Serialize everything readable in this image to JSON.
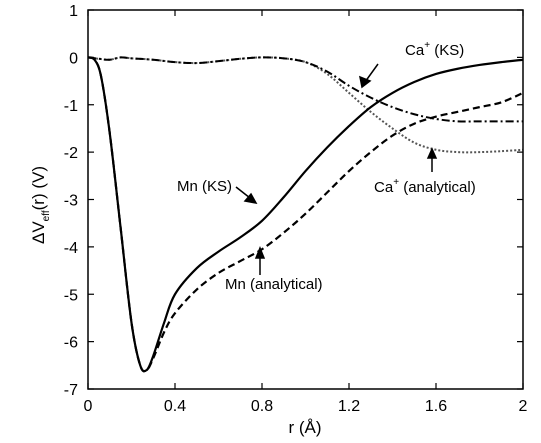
{
  "chart_data": {
    "type": "line",
    "xlabel": "r",
    "xlabel_unit": "(Å)",
    "ylabel_prefix": "ΔV",
    "ylabel_sub": "eff",
    "ylabel_suffix": "(r)",
    "ylabel_unit": "(V)",
    "xlim": [
      0,
      2
    ],
    "ylim": [
      -7,
      1
    ],
    "xticks": [
      0,
      0.4,
      0.8,
      1.2,
      1.6,
      2
    ],
    "xtick_labels": [
      "0",
      "0.4",
      "0.8",
      "1.2",
      "1.6",
      "2"
    ],
    "yticks": [
      1,
      0,
      -1,
      -2,
      -3,
      -4,
      -5,
      -6,
      -7
    ],
    "ytick_labels": [
      "1",
      "0",
      "-1",
      "-2",
      "-3",
      "-4",
      "-5",
      "-6",
      "-7"
    ],
    "grid": false,
    "series": [
      {
        "name": "Mn (KS)",
        "style": "solid",
        "x": [
          0,
          0.03,
          0.06,
          0.1,
          0.15,
          0.2,
          0.24,
          0.27,
          0.3,
          0.35,
          0.4,
          0.5,
          0.6,
          0.7,
          0.8,
          0.9,
          1.0,
          1.1,
          1.2,
          1.3,
          1.4,
          1.5,
          1.6,
          1.7,
          1.8,
          1.9,
          2.0
        ],
        "y": [
          0,
          -0.05,
          -0.4,
          -1.6,
          -3.6,
          -5.6,
          -6.5,
          -6.6,
          -6.3,
          -5.6,
          -5.0,
          -4.45,
          -4.1,
          -3.8,
          -3.45,
          -2.95,
          -2.4,
          -1.9,
          -1.45,
          -1.05,
          -0.75,
          -0.52,
          -0.35,
          -0.24,
          -0.16,
          -0.1,
          -0.05
        ]
      },
      {
        "name": "Mn (analytical)",
        "style": "dashed",
        "x": [
          0,
          0.03,
          0.06,
          0.1,
          0.15,
          0.2,
          0.24,
          0.27,
          0.3,
          0.35,
          0.4,
          0.5,
          0.6,
          0.7,
          0.8,
          0.9,
          1.0,
          1.1,
          1.2,
          1.3,
          1.4,
          1.5,
          1.6,
          1.7,
          1.8,
          1.9,
          2.0
        ],
        "y": [
          0,
          -0.05,
          -0.4,
          -1.6,
          -3.6,
          -5.6,
          -6.5,
          -6.6,
          -6.35,
          -5.8,
          -5.4,
          -4.9,
          -4.55,
          -4.3,
          -4.05,
          -3.7,
          -3.3,
          -2.85,
          -2.4,
          -2.0,
          -1.65,
          -1.4,
          -1.25,
          -1.15,
          -1.05,
          -0.95,
          -0.75
        ]
      },
      {
        "name": "Ca+ (KS)",
        "style": "dashdot",
        "x": [
          0,
          0.05,
          0.1,
          0.15,
          0.2,
          0.3,
          0.4,
          0.5,
          0.6,
          0.7,
          0.8,
          0.9,
          1.0,
          1.1,
          1.2,
          1.3,
          1.4,
          1.5,
          1.6,
          1.7,
          1.8,
          1.9,
          2.0
        ],
        "y": [
          0,
          -0.03,
          -0.05,
          0.0,
          -0.02,
          -0.05,
          -0.1,
          -0.12,
          -0.08,
          -0.03,
          0.0,
          -0.02,
          -0.1,
          -0.3,
          -0.6,
          -0.85,
          -1.05,
          -1.2,
          -1.3,
          -1.35,
          -1.35,
          -1.35,
          -1.35
        ]
      },
      {
        "name": "Ca+ (analytical)",
        "style": "dotted",
        "x": [
          0,
          0.05,
          0.1,
          0.15,
          0.2,
          0.3,
          0.4,
          0.5,
          0.6,
          0.7,
          0.8,
          0.9,
          1.0,
          1.1,
          1.2,
          1.3,
          1.4,
          1.5,
          1.6,
          1.7,
          1.8,
          1.9,
          2.0
        ],
        "y": [
          0,
          -0.03,
          -0.05,
          0.0,
          -0.02,
          -0.05,
          -0.1,
          -0.12,
          -0.08,
          -0.03,
          0.0,
          -0.02,
          -0.1,
          -0.35,
          -0.75,
          -1.15,
          -1.5,
          -1.8,
          -1.95,
          -2.0,
          -2.0,
          -1.98,
          -1.95
        ]
      }
    ],
    "annotations": [
      {
        "id": "ca-ks",
        "base": "Ca",
        "sup": "+",
        "rest": " (KS)"
      },
      {
        "id": "ca-an",
        "base": "Ca",
        "sup": "+",
        "rest": " (analytical)"
      },
      {
        "id": "mn-ks",
        "base": "Mn (KS)",
        "sup": "",
        "rest": ""
      },
      {
        "id": "mn-an",
        "base": "Mn (analytical)",
        "sup": "",
        "rest": ""
      }
    ]
  }
}
